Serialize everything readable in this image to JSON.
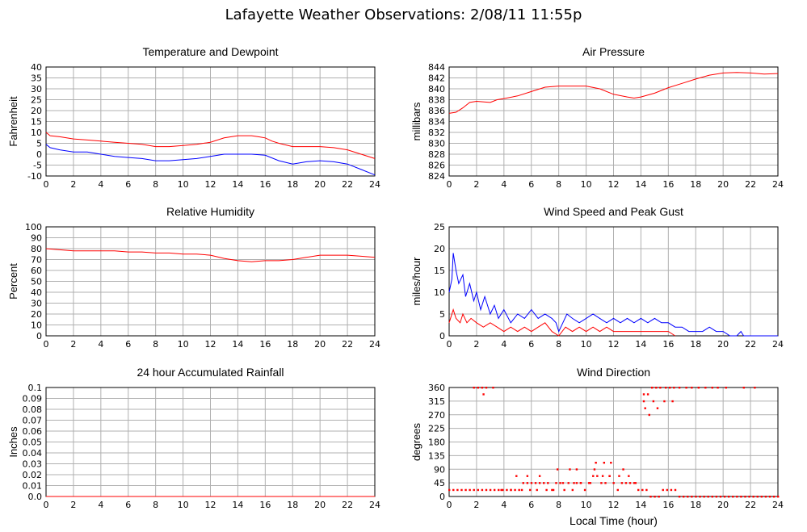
{
  "page": {
    "title": "Lafayette Weather Observations: 2/08/11 11:55p",
    "x_axis_label": "Local Time (hour)"
  },
  "chart_data": [
    {
      "id": "temp",
      "type": "line",
      "title": "Temperature and Dewpoint",
      "ylabel": "Fahrenheit",
      "xlim": [
        0,
        24
      ],
      "ylim": [
        -10,
        40
      ],
      "x_ticks": [
        0,
        2,
        4,
        6,
        8,
        10,
        12,
        14,
        16,
        18,
        20,
        22,
        24
      ],
      "y_ticks": [
        -10,
        -5,
        0,
        5,
        10,
        15,
        20,
        25,
        30,
        35,
        40
      ],
      "grid": true,
      "series": [
        {
          "color": "#ff0000",
          "x": [
            0,
            0.3,
            1,
            2,
            3,
            4,
            5,
            6,
            7,
            8,
            9,
            10,
            11,
            12,
            13,
            14,
            15,
            15.5,
            16,
            16.5,
            17,
            18,
            19,
            20,
            21,
            22,
            23,
            24
          ],
          "y": [
            10,
            8.5,
            8,
            7,
            6.5,
            6,
            5.5,
            5,
            4.5,
            3.5,
            3.5,
            4,
            4.5,
            5.5,
            7.5,
            8.5,
            8.5,
            8,
            7.5,
            6,
            5,
            3.5,
            3.5,
            3.5,
            3,
            2,
            0,
            -2
          ]
        },
        {
          "color": "#0000ff",
          "x": [
            0,
            0.3,
            1,
            2,
            3,
            4,
            5,
            6,
            7,
            8,
            9,
            10,
            11,
            12,
            13,
            14,
            15,
            16,
            17,
            18,
            19,
            20,
            21,
            22,
            23,
            24
          ],
          "y": [
            4.5,
            3,
            2,
            1,
            1,
            0,
            -1,
            -1.5,
            -2,
            -3,
            -3,
            -2.5,
            -2,
            -1,
            0,
            0,
            0,
            -0.5,
            -3,
            -4.5,
            -3.5,
            -3,
            -3.5,
            -4.5,
            -7,
            -9.5
          ]
        }
      ]
    },
    {
      "id": "pressure",
      "type": "line",
      "title": "Air Pressure",
      "ylabel": "millibars",
      "xlim": [
        0,
        24
      ],
      "ylim": [
        824,
        844
      ],
      "x_ticks": [
        0,
        2,
        4,
        6,
        8,
        10,
        12,
        14,
        16,
        18,
        20,
        22,
        24
      ],
      "y_ticks": [
        824,
        826,
        828,
        830,
        832,
        834,
        836,
        838,
        840,
        842,
        844
      ],
      "grid": true,
      "series": [
        {
          "color": "#ff0000",
          "x": [
            0,
            0.5,
            1,
            1.5,
            2,
            3,
            3.5,
            4,
            5,
            6,
            7,
            8,
            9,
            10,
            11,
            12,
            13,
            13.5,
            14,
            15,
            16,
            17,
            18,
            19,
            20,
            21,
            22,
            23,
            24
          ],
          "y": [
            835.5,
            835.7,
            836.5,
            837.5,
            837.7,
            837.5,
            838,
            838.2,
            838.7,
            839.5,
            840.3,
            840.5,
            840.5,
            840.5,
            840,
            839,
            838.5,
            838.3,
            838.5,
            839.2,
            840.2,
            841,
            841.8,
            842.5,
            842.9,
            843,
            842.9,
            842.7,
            842.8
          ]
        }
      ]
    },
    {
      "id": "humidity",
      "type": "line",
      "title": "Relative Humidity",
      "ylabel": "Percent",
      "xlim": [
        0,
        24
      ],
      "ylim": [
        0,
        100
      ],
      "x_ticks": [
        0,
        2,
        4,
        6,
        8,
        10,
        12,
        14,
        16,
        18,
        20,
        22,
        24
      ],
      "y_ticks": [
        0,
        10,
        20,
        30,
        40,
        50,
        60,
        70,
        80,
        90,
        100
      ],
      "grid": true,
      "series": [
        {
          "color": "#ff0000",
          "x": [
            0,
            1,
            2,
            3,
            4,
            5,
            6,
            7,
            8,
            9,
            10,
            11,
            12,
            13,
            14,
            15,
            16,
            17,
            18,
            19,
            20,
            21,
            22,
            23,
            24
          ],
          "y": [
            80,
            79,
            78,
            78,
            78,
            78,
            77,
            77,
            76,
            76,
            75,
            75,
            74,
            71,
            69,
            68,
            69,
            69,
            70,
            72,
            74,
            74,
            74,
            73,
            72
          ]
        }
      ]
    },
    {
      "id": "wind",
      "type": "line",
      "title": "Wind Speed and Peak Gust",
      "ylabel": "miles/hour",
      "xlim": [
        0,
        24
      ],
      "ylim": [
        0,
        25
      ],
      "x_ticks": [
        0,
        2,
        4,
        6,
        8,
        10,
        12,
        14,
        16,
        18,
        20,
        22,
        24
      ],
      "y_ticks": [
        0,
        5,
        10,
        15,
        20,
        25
      ],
      "grid": true,
      "series": [
        {
          "color": "#0000ff",
          "x": [
            0,
            0.2,
            0.3,
            0.5,
            0.7,
            1,
            1.2,
            1.5,
            1.8,
            2,
            2.3,
            2.6,
            3,
            3.3,
            3.6,
            4,
            4.5,
            5,
            5.5,
            6,
            6.5,
            7,
            7.5,
            7.8,
            8,
            8.3,
            8.6,
            9,
            9.5,
            10,
            10.5,
            11,
            11.5,
            12,
            12.5,
            13,
            13.5,
            14,
            14.5,
            15,
            15.5,
            16,
            16.5,
            17,
            17.5,
            18,
            18.5,
            19,
            19.5,
            20,
            20.5,
            21,
            21.3,
            21.5,
            22,
            23,
            24
          ],
          "y": [
            10,
            13,
            19,
            15,
            12,
            14,
            9,
            12,
            8,
            10,
            6,
            9,
            5,
            7,
            4,
            6,
            3,
            5,
            4,
            6,
            4,
            5,
            4,
            3,
            1,
            3,
            5,
            4,
            3,
            4,
            5,
            4,
            3,
            4,
            3,
            4,
            3,
            4,
            3,
            4,
            3,
            3,
            2,
            2,
            1,
            1,
            1,
            2,
            1,
            1,
            0,
            0,
            1,
            0,
            0,
            0,
            0
          ]
        },
        {
          "color": "#ff0000",
          "x": [
            0,
            0.3,
            0.5,
            0.8,
            1,
            1.3,
            1.6,
            2,
            2.5,
            3,
            3.5,
            4,
            4.5,
            5,
            5.5,
            6,
            6.5,
            7,
            7.5,
            8,
            8.5,
            9,
            9.5,
            10,
            10.5,
            11,
            11.5,
            12,
            12.5,
            13,
            13.5,
            14,
            14.5,
            15,
            15.5,
            16,
            16.5
          ],
          "y": [
            3,
            6,
            4,
            3,
            5,
            3,
            4,
            3,
            2,
            3,
            2,
            1,
            2,
            1,
            2,
            1,
            2,
            3,
            1,
            0,
            2,
            1,
            2,
            1,
            2,
            1,
            2,
            1,
            1,
            1,
            1,
            1,
            1,
            1,
            1,
            1,
            0
          ]
        }
      ]
    },
    {
      "id": "rain",
      "type": "line",
      "title": "24 hour Accumulated Rainfall",
      "ylabel": "Inches",
      "xlim": [
        0,
        24
      ],
      "ylim": [
        0,
        0.1
      ],
      "x_ticks": [
        0,
        2,
        4,
        6,
        8,
        10,
        12,
        14,
        16,
        18,
        20,
        22,
        24
      ],
      "y_ticks": [
        "0.0",
        "0.01",
        "0.02",
        "0.03",
        "0.04",
        "0.05",
        "0.06",
        "0.07",
        "0.08",
        "0.09",
        "0.1"
      ],
      "grid": true,
      "series": [
        {
          "color": "#ff0000",
          "x": [
            0,
            24
          ],
          "y": [
            0,
            0
          ]
        }
      ]
    },
    {
      "id": "direction",
      "type": "scatter",
      "title": "Wind Direction",
      "ylabel": "degrees",
      "xlim": [
        0,
        24
      ],
      "ylim": [
        0,
        360
      ],
      "x_ticks": [
        0,
        2,
        4,
        6,
        8,
        10,
        12,
        14,
        16,
        18,
        20,
        22,
        24
      ],
      "y_ticks": [
        0,
        45,
        90,
        135,
        180,
        225,
        270,
        315,
        360
      ],
      "grid": true,
      "series": [
        {
          "color": "#ff0000",
          "x": [
            0,
            0.3,
            0.6,
            0.9,
            1.2,
            1.5,
            1.8,
            2.1,
            2.4,
            2.7,
            3,
            3.3,
            3.6,
            3.9,
            4.2,
            4.5,
            4.8,
            5.1,
            5.4,
            5.7,
            6,
            6.3,
            6.6,
            6.9,
            7.2,
            7.5,
            7.8,
            8.1,
            8.4,
            8.7,
            9,
            9.3,
            9.6,
            9.9,
            10.2,
            10.5,
            10.8,
            11.1,
            11.4,
            11.7,
            12,
            12.3,
            12.6,
            12.9,
            13.2,
            13.5,
            13.8,
            14.1,
            14.4,
            14.7,
            15,
            15.3,
            15.6,
            15.9,
            16.2,
            16.5,
            16.8,
            17.1,
            17.4,
            17.7,
            18,
            18.3,
            18.6,
            18.9,
            19.2,
            19.5,
            19.8,
            20.1,
            20.4,
            20.7,
            21,
            21.3,
            21.6,
            21.9,
            22.2,
            22.5,
            22.8,
            23.1,
            23.4,
            23.7,
            24,
            1.8,
            2.1,
            2.4,
            2.7,
            3.2,
            2.5,
            3.8,
            4.5,
            5.3,
            5.9,
            6.4,
            7.1,
            7.6,
            8.3,
            9.1,
            9.6,
            10.3,
            10.6,
            11.2,
            11.7,
            12.4,
            13.1,
            13.6,
            14.2,
            14.5,
            14.8,
            15.1,
            15.4,
            15.8,
            16.1,
            16.4,
            16.8,
            17.3,
            17.7,
            18.2,
            18.7,
            19.2,
            19.6,
            20.2,
            21.5,
            22.3,
            14.3,
            14.6,
            14.9,
            15.2,
            15.7,
            16.3,
            14.2,
            9.3,
            8.8,
            7.9,
            6.6,
            5.7,
            4.9,
            11.8,
            11.3,
            10.7,
            12.7
          ],
          "y": [
            22,
            22,
            22,
            22,
            22,
            22,
            22,
            22,
            22,
            22,
            22,
            22,
            22,
            22,
            22,
            22,
            22,
            22,
            45,
            45,
            45,
            45,
            45,
            45,
            45,
            22,
            45,
            45,
            22,
            45,
            22,
            45,
            45,
            22,
            45,
            68,
            68,
            45,
            45,
            68,
            45,
            22,
            45,
            45,
            45,
            45,
            22,
            22,
            22,
            0,
            0,
            0,
            22,
            22,
            22,
            22,
            0,
            0,
            0,
            0,
            0,
            0,
            0,
            0,
            0,
            0,
            0,
            0,
            0,
            0,
            0,
            0,
            0,
            0,
            0,
            0,
            0,
            0,
            0,
            0,
            0,
            360,
            360,
            360,
            360,
            360,
            338,
            22,
            22,
            22,
            22,
            22,
            22,
            22,
            45,
            45,
            45,
            45,
            90,
            68,
            68,
            68,
            68,
            45,
            315,
            338,
            360,
            360,
            360,
            360,
            360,
            360,
            360,
            360,
            360,
            360,
            360,
            360,
            360,
            360,
            360,
            360,
            292,
            270,
            315,
            292,
            315,
            315,
            338,
            90,
            90,
            90,
            68,
            68,
            68,
            112,
            112,
            112,
            90
          ]
        }
      ]
    }
  ]
}
